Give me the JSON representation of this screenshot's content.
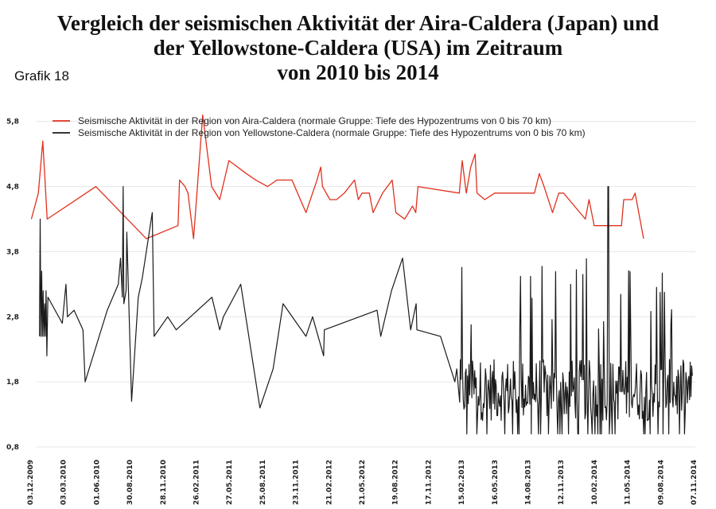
{
  "title_lines": [
    "Vergleich der seismischen Aktivität der Aira-Caldera (Japan) und",
    "der Yellowstone-Caldera (USA) im Zeitraum",
    "von 2010 bis 2014"
  ],
  "grafik_label": "Grafik 18",
  "colors": {
    "aira": "#e0301e",
    "yellowstone": "#1a1a1a",
    "grid": "#e6e6e6"
  },
  "chart_data": {
    "type": "line",
    "title": "Vergleich der seismischen Aktivität der Aira-Caldera (Japan) und der Yellowstone-Caldera (USA) im Zeitraum von 2010 bis 2014",
    "xlabel": "",
    "ylabel": "",
    "ylim": [
      0.8,
      6.2
    ],
    "y_ticks": [
      0.8,
      1.8,
      2.8,
      3.8,
      4.8,
      5.8
    ],
    "y_tick_labels": [
      "0,8",
      "1,8",
      "2,8",
      "3,8",
      "4,8",
      "5,8"
    ],
    "x_tick_labels": [
      "03.12.2009",
      "03.03.2010",
      "01.06.2010",
      "30.08.2010",
      "28.11.2010",
      "26.02.2011",
      "27.05.2011",
      "25.08.2011",
      "23.11.2011",
      "21.02.2012",
      "21.05.2012",
      "19.08.2012",
      "17.11.2012",
      "15.02.2013",
      "16.05.2013",
      "14.08.2013",
      "12.11.2013",
      "10.02.2014",
      "11.05.2014",
      "09.08.2014",
      "07.11.2014"
    ],
    "grid": true,
    "legend_position": "top",
    "series": [
      {
        "name": "Seismische Aktivität in der Region von Aira-Caldera (normale Gruppe: Tiefe des Hypozentrums von 0 bis 70 km)",
        "color": "#e0301e",
        "points": [
          [
            "2009-12-06",
            4.3
          ],
          [
            "2009-12-25",
            4.7
          ],
          [
            "2010-01-06",
            5.5
          ],
          [
            "2010-01-18",
            4.3
          ],
          [
            "2010-05-30",
            4.8
          ],
          [
            "2010-10-14",
            4.0
          ],
          [
            "2011-01-08",
            4.2
          ],
          [
            "2011-01-12",
            4.9
          ],
          [
            "2011-01-27",
            4.8
          ],
          [
            "2011-02-04",
            4.7
          ],
          [
            "2011-02-19",
            4.0
          ],
          [
            "2011-03-16",
            5.9
          ],
          [
            "2011-04-09",
            4.8
          ],
          [
            "2011-05-01",
            4.6
          ],
          [
            "2011-05-26",
            5.2
          ],
          [
            "2011-07-12",
            5.0
          ],
          [
            "2011-08-07",
            4.9
          ],
          [
            "2011-09-08",
            4.8
          ],
          [
            "2011-10-03",
            4.9
          ],
          [
            "2011-11-13",
            4.9
          ],
          [
            "2011-12-21",
            4.4
          ],
          [
            "2012-01-20",
            4.9
          ],
          [
            "2012-01-30",
            5.1
          ],
          [
            "2012-02-04",
            4.8
          ],
          [
            "2012-02-24",
            4.6
          ],
          [
            "2012-03-13",
            4.6
          ],
          [
            "2012-04-03",
            4.7
          ],
          [
            "2012-05-01",
            4.9
          ],
          [
            "2012-05-11",
            4.6
          ],
          [
            "2012-05-21",
            4.7
          ],
          [
            "2012-06-10",
            4.7
          ],
          [
            "2012-06-20",
            4.4
          ],
          [
            "2012-07-16",
            4.7
          ],
          [
            "2012-08-11",
            4.9
          ],
          [
            "2012-08-21",
            4.4
          ],
          [
            "2012-09-14",
            4.3
          ],
          [
            "2012-10-05",
            4.5
          ],
          [
            "2012-10-14",
            4.4
          ],
          [
            "2012-10-20",
            4.8
          ],
          [
            "2013-02-09",
            4.7
          ],
          [
            "2013-02-17",
            5.2
          ],
          [
            "2013-02-28",
            4.7
          ],
          [
            "2013-03-12",
            5.1
          ],
          [
            "2013-03-24",
            5.3
          ],
          [
            "2013-03-29",
            4.7
          ],
          [
            "2013-04-19",
            4.6
          ],
          [
            "2013-05-16",
            4.7
          ],
          [
            "2013-09-01",
            4.7
          ],
          [
            "2013-09-14",
            5.0
          ],
          [
            "2013-09-27",
            4.8
          ],
          [
            "2013-10-20",
            4.4
          ],
          [
            "2013-11-06",
            4.7
          ],
          [
            "2013-11-19",
            4.7
          ],
          [
            "2014-01-17",
            4.3
          ],
          [
            "2014-01-27",
            4.6
          ],
          [
            "2014-02-10",
            4.2
          ],
          [
            "2014-04-25",
            4.2
          ],
          [
            "2014-05-01",
            4.6
          ],
          [
            "2014-05-24",
            4.6
          ],
          [
            "2014-06-01",
            4.7
          ],
          [
            "2014-06-24",
            4.0
          ]
        ]
      },
      {
        "name": "Seismische Aktivität in der Region von Yellowstone-Caldera (normale Gruppe: Tiefe des Hypozentrums von 0 bis 70 km)",
        "color": "#1a1a1a",
        "points": [
          [
            "2009-12-28",
            2.5
          ],
          [
            "2009-12-30",
            4.3
          ],
          [
            "2010-01-01",
            2.5
          ],
          [
            "2010-01-03",
            3.5
          ],
          [
            "2010-01-05",
            2.5
          ],
          [
            "2010-01-07",
            3.2
          ],
          [
            "2010-01-09",
            2.5
          ],
          [
            "2010-01-11",
            3.0
          ],
          [
            "2010-01-13",
            2.5
          ],
          [
            "2010-01-15",
            3.2
          ],
          [
            "2010-01-17",
            2.2
          ],
          [
            "2010-01-20",
            3.1
          ],
          [
            "2010-02-28",
            2.7
          ],
          [
            "2010-03-10",
            3.3
          ],
          [
            "2010-03-14",
            2.8
          ],
          [
            "2010-04-01",
            2.9
          ],
          [
            "2010-04-25",
            2.6
          ],
          [
            "2010-05-01",
            1.8
          ],
          [
            "2010-06-30",
            2.9
          ],
          [
            "2010-07-30",
            3.3
          ],
          [
            "2010-08-05",
            3.7
          ],
          [
            "2010-08-10",
            3.1
          ],
          [
            "2010-08-12",
            4.8
          ],
          [
            "2010-08-14",
            3.0
          ],
          [
            "2010-08-20",
            3.2
          ],
          [
            "2010-08-22",
            4.1
          ],
          [
            "2010-09-04",
            1.5
          ],
          [
            "2010-09-22",
            3.1
          ],
          [
            "2010-10-03",
            3.4
          ],
          [
            "2010-10-30",
            4.4
          ],
          [
            "2010-11-04",
            2.5
          ],
          [
            "2010-12-11",
            2.8
          ],
          [
            "2011-01-03",
            2.6
          ],
          [
            "2011-04-10",
            3.1
          ],
          [
            "2011-05-01",
            2.6
          ],
          [
            "2011-05-11",
            2.8
          ],
          [
            "2011-06-27",
            3.3
          ],
          [
            "2011-08-18",
            1.4
          ],
          [
            "2011-09-23",
            2.0
          ],
          [
            "2011-10-20",
            3.0
          ],
          [
            "2011-12-21",
            2.5
          ],
          [
            "2012-01-08",
            2.8
          ],
          [
            "2012-02-07",
            2.2
          ],
          [
            "2012-02-09",
            2.6
          ],
          [
            "2012-07-01",
            2.9
          ],
          [
            "2012-07-11",
            2.5
          ],
          [
            "2012-08-09",
            3.2
          ],
          [
            "2012-09-08",
            3.7
          ],
          [
            "2012-09-30",
            2.6
          ],
          [
            "2012-10-15",
            3.0
          ],
          [
            "2012-10-17",
            2.6
          ],
          [
            "2012-12-20",
            2.5
          ],
          [
            "2013-01-28",
            1.8
          ],
          [
            "2013-02-02",
            2.0
          ]
        ],
        "dense_from": "2013-02-10",
        "dense_to": "2014-11-04",
        "dense_range": [
          1.0,
          3.7
        ],
        "dense_peak": [
          "2014-03-20",
          4.8
        ]
      }
    ]
  }
}
